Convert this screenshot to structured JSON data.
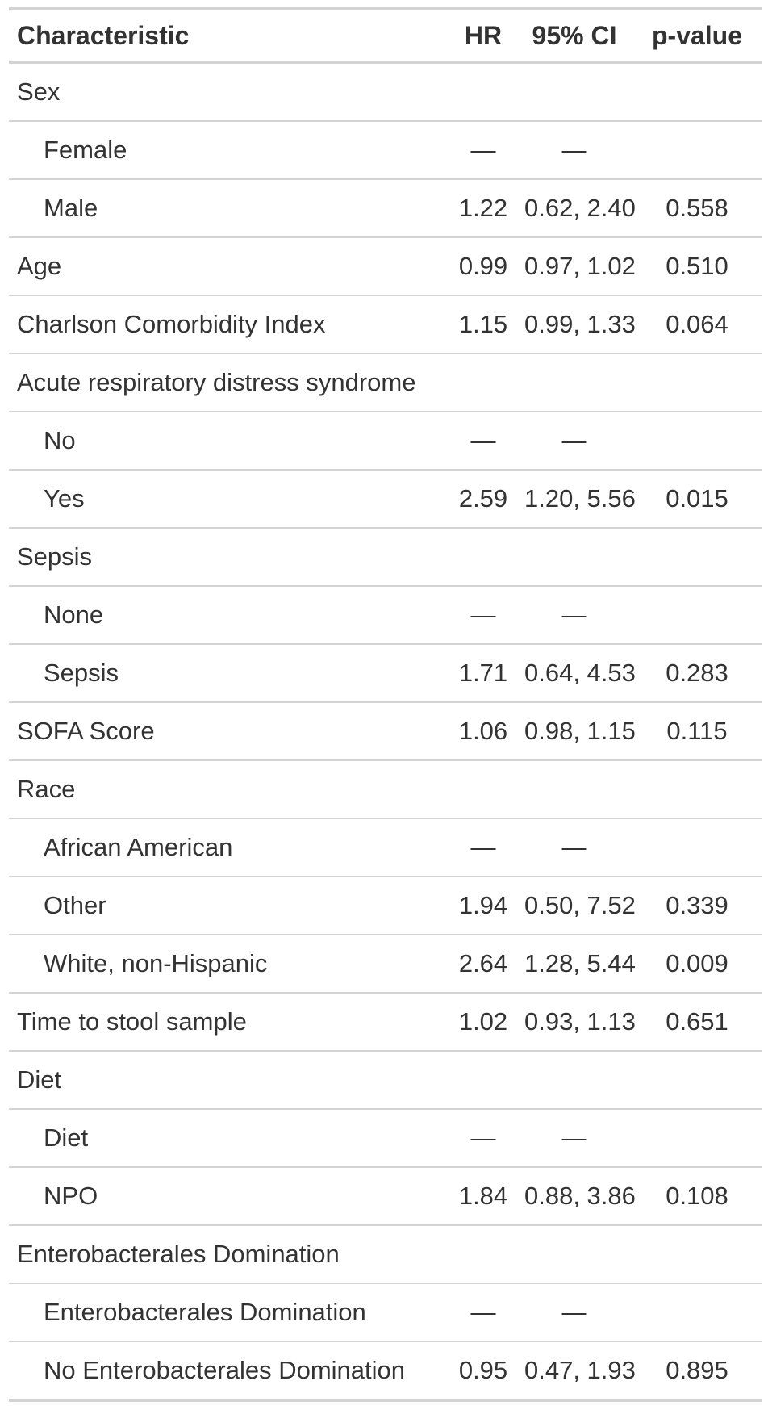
{
  "table": {
    "headers": {
      "characteristic": "Characteristic",
      "hr": "HR",
      "ci": "95% CI",
      "p": "p-value"
    },
    "rows": [
      {
        "label": "Sex",
        "indent": false,
        "hr": "",
        "ci": "",
        "p": ""
      },
      {
        "label": "Female",
        "indent": true,
        "hr": "—",
        "ci": "—",
        "p": ""
      },
      {
        "label": "Male",
        "indent": true,
        "hr": "1.22",
        "ci": "0.62, 2.40",
        "p": "0.558"
      },
      {
        "label": "Age",
        "indent": false,
        "hr": "0.99",
        "ci": "0.97, 1.02",
        "p": "0.510"
      },
      {
        "label": "Charlson Comorbidity Index",
        "indent": false,
        "hr": "1.15",
        "ci": "0.99, 1.33",
        "p": "0.064"
      },
      {
        "label": "Acute respiratory distress syndrome",
        "indent": false,
        "hr": "",
        "ci": "",
        "p": ""
      },
      {
        "label": "No",
        "indent": true,
        "hr": "—",
        "ci": "—",
        "p": ""
      },
      {
        "label": "Yes",
        "indent": true,
        "hr": "2.59",
        "ci": "1.20, 5.56",
        "p": "0.015"
      },
      {
        "label": "Sepsis",
        "indent": false,
        "hr": "",
        "ci": "",
        "p": ""
      },
      {
        "label": "None",
        "indent": true,
        "hr": "—",
        "ci": "—",
        "p": ""
      },
      {
        "label": "Sepsis",
        "indent": true,
        "hr": "1.71",
        "ci": "0.64, 4.53",
        "p": "0.283"
      },
      {
        "label": "SOFA Score",
        "indent": false,
        "hr": "1.06",
        "ci": "0.98, 1.15",
        "p": "0.115"
      },
      {
        "label": "Race",
        "indent": false,
        "hr": "",
        "ci": "",
        "p": ""
      },
      {
        "label": "African American",
        "indent": true,
        "hr": "—",
        "ci": "—",
        "p": ""
      },
      {
        "label": "Other",
        "indent": true,
        "hr": "1.94",
        "ci": "0.50, 7.52",
        "p": "0.339"
      },
      {
        "label": "White, non-Hispanic",
        "indent": true,
        "hr": "2.64",
        "ci": "1.28, 5.44",
        "p": "0.009"
      },
      {
        "label": "Time to stool sample",
        "indent": false,
        "hr": "1.02",
        "ci": "0.93, 1.13",
        "p": "0.651"
      },
      {
        "label": "Diet",
        "indent": false,
        "hr": "",
        "ci": "",
        "p": ""
      },
      {
        "label": "Diet",
        "indent": true,
        "hr": "—",
        "ci": "—",
        "p": ""
      },
      {
        "label": "NPO",
        "indent": true,
        "hr": "1.84",
        "ci": "0.88, 3.86",
        "p": "0.108"
      },
      {
        "label": "Enterobacterales Domination",
        "indent": false,
        "hr": "",
        "ci": "",
        "p": ""
      },
      {
        "label": "Enterobacterales Domination",
        "indent": true,
        "hr": "—",
        "ci": "—",
        "p": ""
      },
      {
        "label": "No Enterobacterales Domination",
        "indent": true,
        "hr": "0.95",
        "ci": "0.47, 1.93",
        "p": "0.895"
      }
    ]
  },
  "colors": {
    "text": "#333333",
    "rule": "#d3d3d3",
    "background": "#ffffff"
  }
}
